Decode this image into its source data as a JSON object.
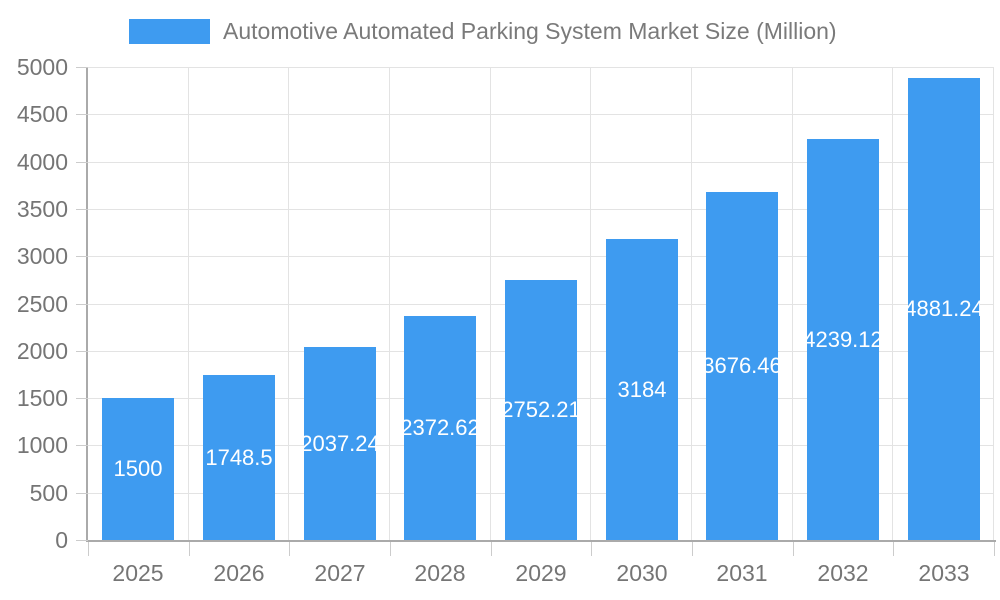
{
  "legend": {
    "label": "Automotive Automated Parking System Market Size (Million)"
  },
  "chart_data": {
    "type": "bar",
    "title": "Automotive Automated Parking System Market Size (Million)",
    "legend_position": "top",
    "grid": true,
    "categories": [
      "2025",
      "2026",
      "2027",
      "2028",
      "2029",
      "2030",
      "2031",
      "2032",
      "2033"
    ],
    "values": [
      1500,
      1748.5,
      2037.24,
      2372.62,
      2752.21,
      3184,
      3676.46,
      4239.12,
      4881.24
    ],
    "bar_labels": [
      "1500",
      "1748.5",
      "2037.24",
      "2372.62",
      "2752.21",
      "3184",
      "3676.46",
      "4239.12",
      "4881.24"
    ],
    "xlabel": "",
    "ylabel": "",
    "ylim": [
      0,
      5000
    ],
    "ytick_step": 500,
    "ytick_labels": [
      "0",
      "500",
      "1000",
      "1500",
      "2000",
      "2500",
      "3000",
      "3500",
      "4000",
      "4500",
      "5000"
    ],
    "colors": {
      "bar": "#3E9BF0",
      "bar_label_text": "#FFFFFF",
      "axis_line": "#AAAAAA",
      "tick": "#CCCCCC",
      "gridline": "#E3E3E3",
      "axis_text": "#757575",
      "legend_text": "#7A7A7A",
      "background": "#FFFFFF"
    }
  }
}
